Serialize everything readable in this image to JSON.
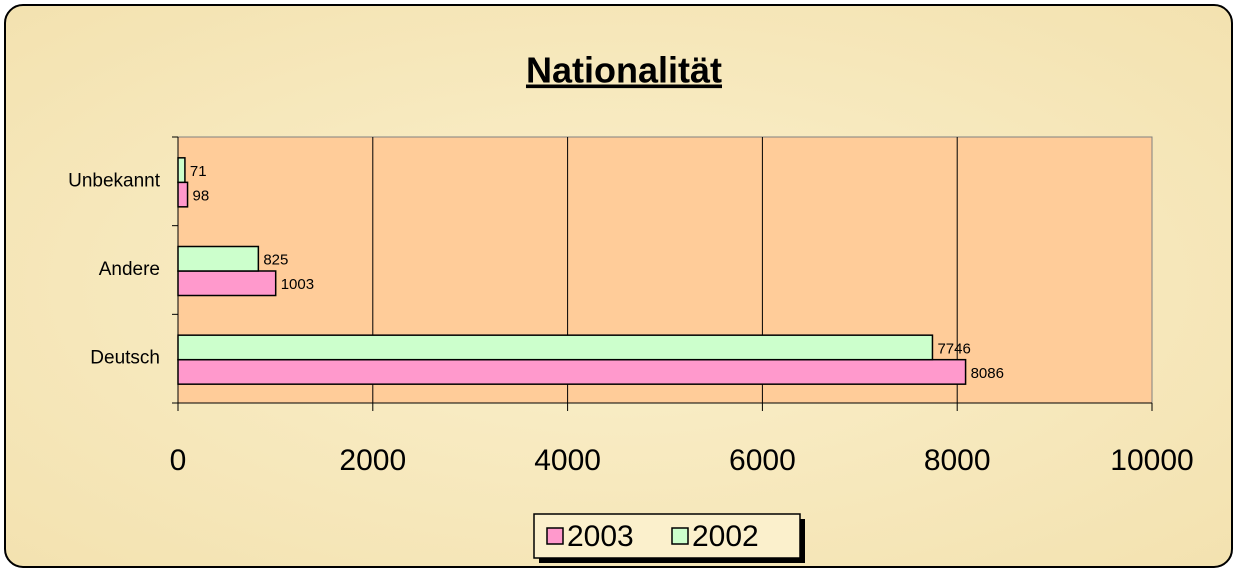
{
  "chart_data": {
    "type": "bar",
    "orientation": "horizontal",
    "title": "Nationalität",
    "categories": [
      "Deutsch",
      "Andere",
      "Unbekannt"
    ],
    "series": [
      {
        "name": "2003",
        "color": "#ff99cc",
        "values": [
          8086,
          1003,
          98
        ]
      },
      {
        "name": "2002",
        "color": "#ccffcc",
        "values": [
          7746,
          825,
          71
        ]
      }
    ],
    "xlim": [
      0,
      10000
    ],
    "xticks": [
      0,
      2000,
      4000,
      6000,
      8000,
      10000
    ],
    "grid": true,
    "legend": "bottom"
  }
}
